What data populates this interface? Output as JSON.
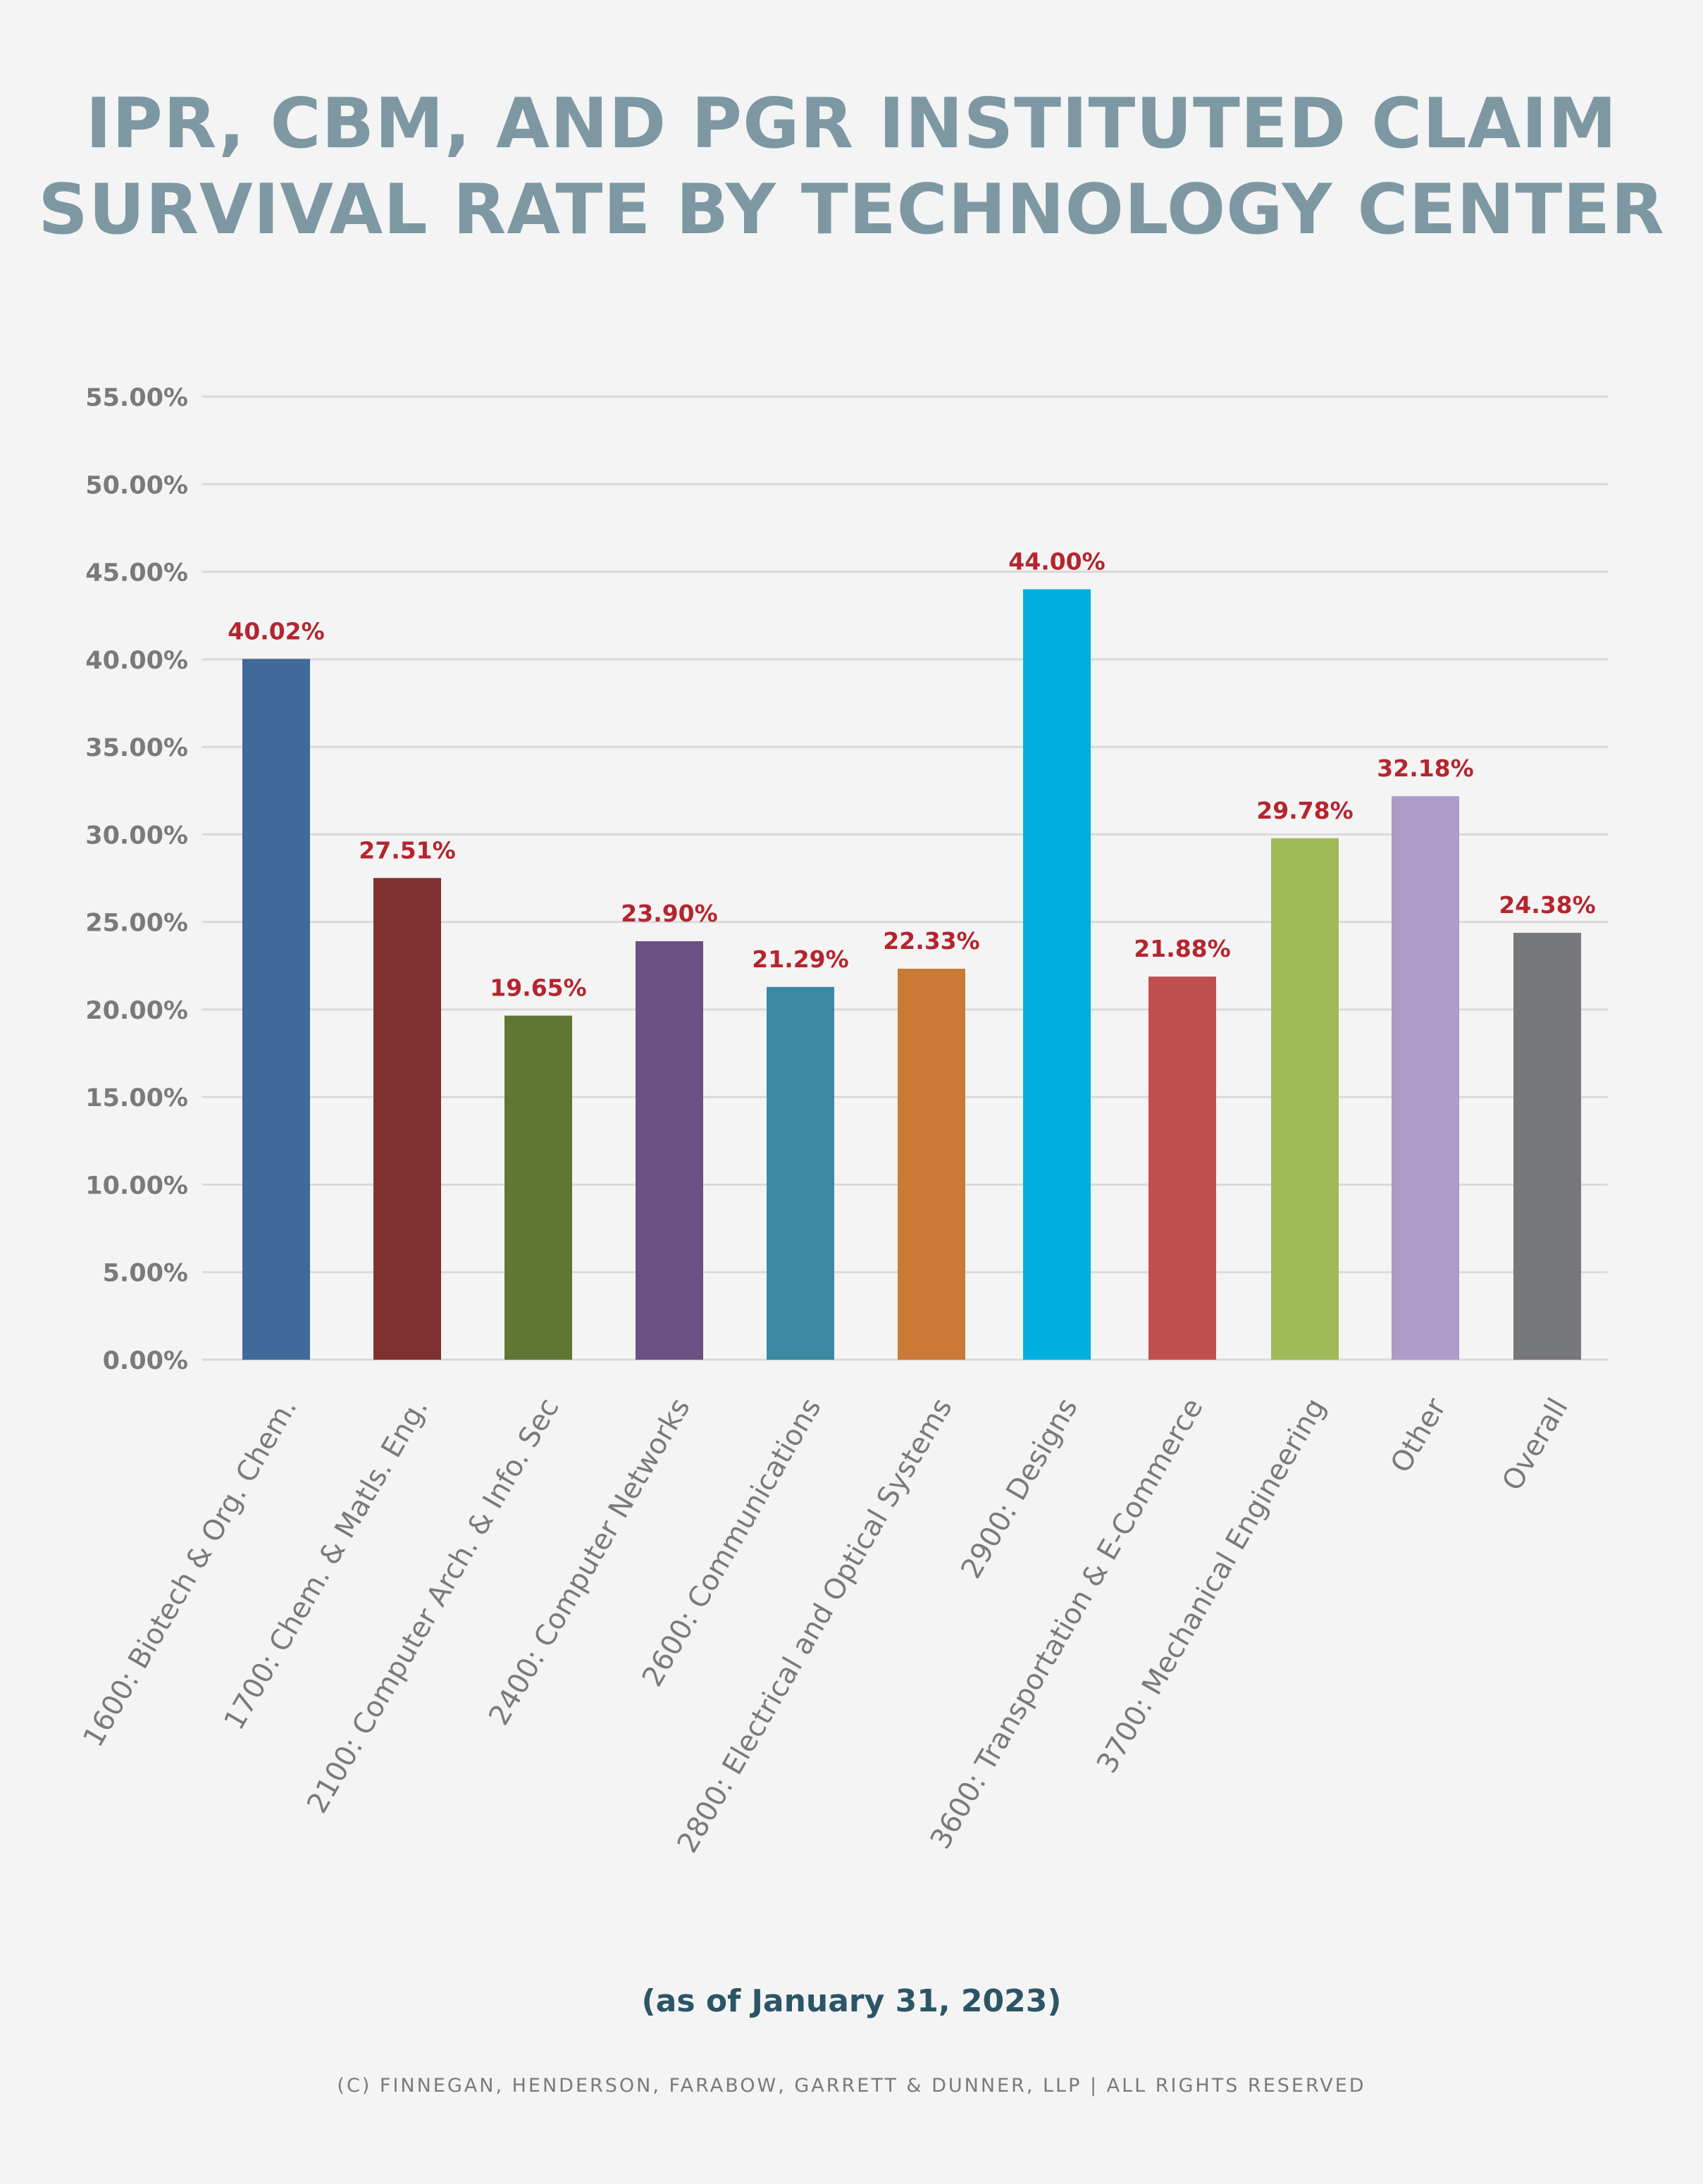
{
  "title_lines": [
    "IPR, CBM, AND PGR INSTITUTED CLAIM",
    "SURVIVAL RATE BY TECHNOLOGY CENTER"
  ],
  "subtitle": "(as of January 31, 2023)",
  "footer": "(c) Finnegan, Henderson, Farabow, Garrett & Dunner, LLP | All rights reserved",
  "colors": {
    "background": "#f4f4f4",
    "title": "#7d98a2",
    "value_label": "#b5252f",
    "axis_text": "#7a7a7a",
    "gridline": "#d9d9d9"
  },
  "chart_data": {
    "type": "bar",
    "title": "IPR, CBM, AND PGR INSTITUTED CLAIM SURVIVAL RATE BY TECHNOLOGY CENTER",
    "xlabel": "",
    "ylabel": "",
    "ylim": [
      0,
      55
    ],
    "yticks": [
      "0.00%",
      "5.00%",
      "10.00%",
      "15.00%",
      "20.00%",
      "25.00%",
      "30.00%",
      "35.00%",
      "40.00%",
      "45.00%",
      "50.00%",
      "55.00%"
    ],
    "grid": true,
    "categories": [
      "1600: Biotech & Org. Chem.",
      "1700: Chem. & Matls. Eng.",
      "2100: Computer Arch. & Info. Sec",
      "2400: Computer Networks",
      "2600: Communications",
      "2800: Electrical and Optical Systems",
      "2900: Designs",
      "3600: Transportation & E-Commerce",
      "3700: Mechanical Engineering",
      "Other",
      "Overall"
    ],
    "values": [
      40.02,
      27.51,
      19.65,
      23.9,
      21.29,
      22.33,
      44.0,
      21.88,
      29.78,
      32.18,
      24.38
    ],
    "value_labels": [
      "40.02%",
      "27.51%",
      "19.65%",
      "23.90%",
      "21.29%",
      "22.33%",
      "44.00%",
      "21.88%",
      "29.78%",
      "32.18%",
      "24.38%"
    ],
    "bar_colors": [
      "#3f6a99",
      "#7f3130",
      "#5f7733",
      "#6a5083",
      "#3b8aa3",
      "#ca7a36",
      "#00aee0",
      "#c05050",
      "#9fbb58",
      "#ae9bc8",
      "#77787b"
    ]
  }
}
